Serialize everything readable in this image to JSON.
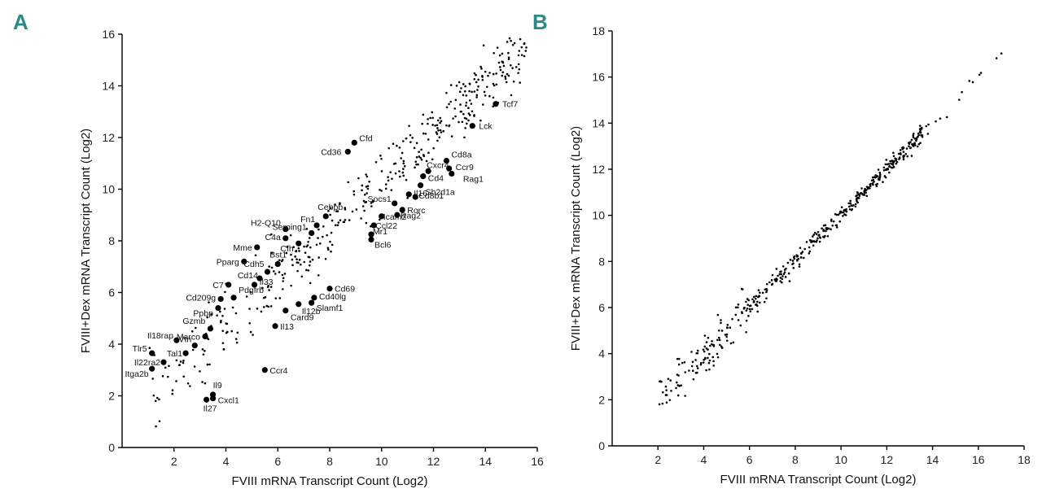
{
  "panels": {
    "a": {
      "letter": "A"
    },
    "b": {
      "letter": "B"
    }
  },
  "colors": {
    "letter": "#2a8a8a",
    "point": "#000000"
  },
  "chart_data": [
    {
      "id": "a",
      "type": "scatter",
      "title": "",
      "xlabel": "FVIII mRNA Transcript Count (Log2)",
      "ylabel": "FVIII+Dex mRNA Transcript Count (Log2)",
      "xlim": [
        0,
        16
      ],
      "ylim": [
        0,
        16
      ],
      "xticks": [
        2,
        4,
        6,
        8,
        10,
        12,
        14,
        16
      ],
      "yticks": [
        0,
        2,
        4,
        6,
        8,
        10,
        12,
        14,
        16
      ],
      "grid": false,
      "highlighted": [
        {
          "label": "Tcf7",
          "x": 14.4,
          "y": 13.3
        },
        {
          "label": "Lck",
          "x": 13.5,
          "y": 12.45
        },
        {
          "label": "Cfd",
          "x": 8.95,
          "y": 11.8
        },
        {
          "label": "Cd36",
          "x": 8.7,
          "y": 11.45
        },
        {
          "label": "Cd8a",
          "x": 12.5,
          "y": 11.1
        },
        {
          "label": "Ccr9",
          "x": 12.6,
          "y": 10.8
        },
        {
          "label": "Rag1",
          "x": 12.7,
          "y": 10.6
        },
        {
          "label": "Cxcr4",
          "x": 11.8,
          "y": 10.7
        },
        {
          "label": "Cd4",
          "x": 11.6,
          "y": 10.5
        },
        {
          "label": "Sh2d1a",
          "x": 11.5,
          "y": 10.15
        },
        {
          "label": "Il16",
          "x": 11.05,
          "y": 9.8
        },
        {
          "label": "Cd8b1",
          "x": 11.3,
          "y": 9.7
        },
        {
          "label": "Socs1",
          "x": 10.5,
          "y": 9.45
        },
        {
          "label": "Rorc",
          "x": 10.8,
          "y": 9.2
        },
        {
          "label": "Rag2",
          "x": 10.6,
          "y": 9.0
        },
        {
          "label": "Icam2",
          "x": 10.0,
          "y": 8.95
        },
        {
          "label": "Ccl22",
          "x": 9.7,
          "y": 8.6
        },
        {
          "label": "Mr1",
          "x": 9.6,
          "y": 8.25
        },
        {
          "label": "Bcl6",
          "x": 9.6,
          "y": 8.05
        },
        {
          "label": "Cebpb",
          "x": 7.85,
          "y": 8.95
        },
        {
          "label": "Fn1",
          "x": 7.5,
          "y": 8.6
        },
        {
          "label": "H2-Q10",
          "x": 6.3,
          "y": 8.45
        },
        {
          "label": "Serping1",
          "x": 7.3,
          "y": 8.3
        },
        {
          "label": "C4a",
          "x": 6.3,
          "y": 8.1
        },
        {
          "label": "Cfh",
          "x": 6.8,
          "y": 7.9
        },
        {
          "label": "Mme",
          "x": 5.2,
          "y": 7.75
        },
        {
          "label": "Bst1",
          "x": 6.0,
          "y": 7.1
        },
        {
          "label": "Pparg",
          "x": 4.7,
          "y": 7.2
        },
        {
          "label": "Cdh5",
          "x": 5.6,
          "y": 6.8
        },
        {
          "label": "Cd14",
          "x": 5.3,
          "y": 6.55
        },
        {
          "label": "Il33",
          "x": 5.1,
          "y": 6.3
        },
        {
          "label": "C7",
          "x": 4.1,
          "y": 6.3
        },
        {
          "label": "Pdgfrb",
          "x": 4.3,
          "y": 5.8
        },
        {
          "label": "Cd209g",
          "x": 3.8,
          "y": 5.75
        },
        {
          "label": "Ppbp",
          "x": 3.7,
          "y": 5.4
        },
        {
          "label": "Cd69",
          "x": 8.0,
          "y": 6.15
        },
        {
          "label": "Cd40lg",
          "x": 7.4,
          "y": 5.8
        },
        {
          "label": "Slamf1",
          "x": 7.3,
          "y": 5.6
        },
        {
          "label": "Il12b",
          "x": 6.8,
          "y": 5.55
        },
        {
          "label": "Card9",
          "x": 6.3,
          "y": 5.3
        },
        {
          "label": "Il13",
          "x": 5.9,
          "y": 4.7
        },
        {
          "label": "Gzmb",
          "x": 3.4,
          "y": 4.6
        },
        {
          "label": "Marco",
          "x": 3.2,
          "y": 4.3
        },
        {
          "label": "Il18rap",
          "x": 2.1,
          "y": 4.15
        },
        {
          "label": "Vtn",
          "x": 2.8,
          "y": 3.95
        },
        {
          "label": "Tal1",
          "x": 2.45,
          "y": 3.65
        },
        {
          "label": "Tlr5",
          "x": 1.15,
          "y": 3.65
        },
        {
          "label": "Il22ra2",
          "x": 1.6,
          "y": 3.3
        },
        {
          "label": "Itga2b",
          "x": 1.15,
          "y": 3.05
        },
        {
          "label": "Ccr4",
          "x": 5.5,
          "y": 3.0
        },
        {
          "label": "Il9",
          "x": 3.5,
          "y": 2.05
        },
        {
          "label": "Cxcl1",
          "x": 3.5,
          "y": 1.9
        },
        {
          "label": "Il27",
          "x": 3.25,
          "y": 1.85
        }
      ],
      "background_points": {
        "count": 420,
        "trend": "y ≈ 0.95x + 0.8",
        "x_range": [
          1,
          15.6
        ]
      }
    },
    {
      "id": "b",
      "type": "scatter",
      "title": "",
      "xlabel": "FVIII mRNA Transcript Count (Log2)",
      "ylabel": "FVIII+Dex mRNA Transcript Count (Log2)",
      "xlim": [
        0,
        18
      ],
      "ylim": [
        0,
        18
      ],
      "xticks": [
        2,
        4,
        6,
        8,
        10,
        12,
        14,
        16,
        18
      ],
      "yticks": [
        0,
        2,
        4,
        6,
        8,
        10,
        12,
        14,
        16,
        18
      ],
      "grid": false,
      "background_points": {
        "count": 460,
        "trend": "y ≈ x",
        "x_range": [
          2,
          17.1
        ]
      }
    }
  ]
}
